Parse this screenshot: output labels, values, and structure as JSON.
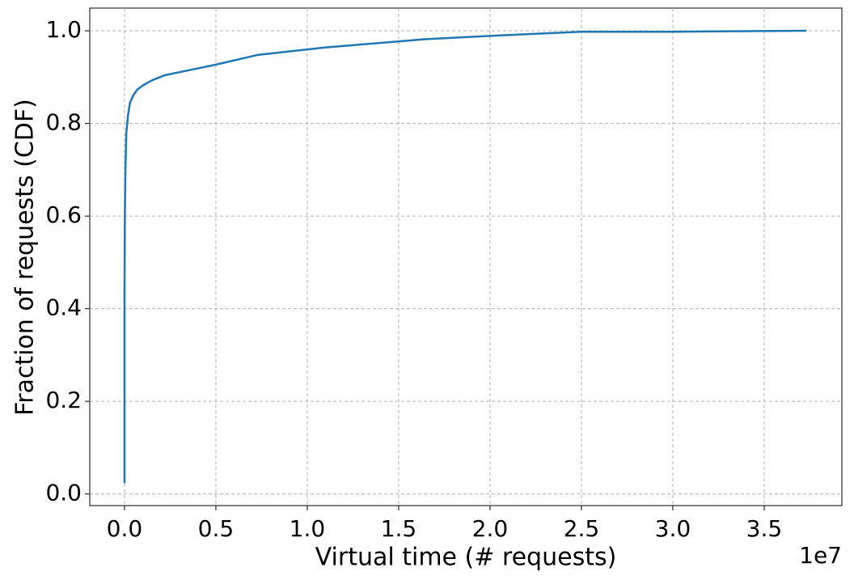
{
  "chart_data": {
    "type": "line",
    "x_label": "Virtual time (# requests)",
    "y_label": "Fraction of requests (CDF)",
    "x_offset_label": "1e7",
    "x": [
      0,
      0,
      20000,
      50000,
      100000,
      200000,
      300000,
      500000,
      700000,
      1000000,
      1500000,
      2200000,
      5000000,
      7300000,
      11000000,
      16500000,
      20000000,
      25000000,
      30000000,
      37300000
    ],
    "series": [
      {
        "name": "CDF",
        "color": "#1f77b4",
        "values": [
          0.023,
          0.43,
          0.6,
          0.7,
          0.78,
          0.82,
          0.845,
          0.862,
          0.873,
          0.882,
          0.893,
          0.904,
          0.927,
          0.948,
          0.964,
          0.982,
          0.989,
          0.998,
          0.998,
          1.0
        ]
      }
    ],
    "xlim": [
      -1900000,
      39250000
    ],
    "ylim": [
      -0.025,
      1.049
    ],
    "xticks": [
      {
        "value": 0,
        "label": "0.0"
      },
      {
        "value": 5000000,
        "label": "0.5"
      },
      {
        "value": 10000000,
        "label": "1.0"
      },
      {
        "value": 15000000,
        "label": "1.5"
      },
      {
        "value": 20000000,
        "label": "2.0"
      },
      {
        "value": 25000000,
        "label": "2.5"
      },
      {
        "value": 30000000,
        "label": "3.0"
      },
      {
        "value": 35000000,
        "label": "3.5"
      }
    ],
    "yticks": [
      {
        "value": 0,
        "label": "0.0"
      },
      0.2,
      0.4,
      0.6,
      0.8,
      {
        "value": 1,
        "label": "1.0"
      }
    ],
    "grid": true
  }
}
